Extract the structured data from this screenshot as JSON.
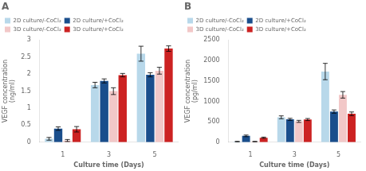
{
  "chart_data": [
    {
      "type": "bar",
      "title": "A",
      "x_label": "Culture time (Days)",
      "y_label": "VEGF concentration\n(ng/ml)",
      "categories": [
        "1",
        "3",
        "5"
      ],
      "series": [
        {
          "name": "2D culture/-CoCl₂",
          "color": "#b8d8ea",
          "values": [
            0.1,
            1.68,
            2.6
          ],
          "errors": [
            0.04,
            0.08,
            0.22
          ]
        },
        {
          "name": "2D culture/+CoCl₂",
          "color": "#1a4e8c",
          "values": [
            0.4,
            1.8,
            1.98
          ],
          "errors": [
            0.05,
            0.06,
            0.06
          ]
        },
        {
          "name": "3D culture/-CoCl₂",
          "color": "#f2c8c8",
          "values": [
            0.05,
            1.5,
            2.1
          ],
          "errors": [
            0.03,
            0.1,
            0.1
          ]
        },
        {
          "name": "3D culture/+CoCl₂",
          "color": "#cc2222",
          "values": [
            0.38,
            1.97,
            2.75
          ],
          "errors": [
            0.08,
            0.05,
            0.08
          ]
        }
      ],
      "ylim": [
        0,
        3
      ],
      "yticks": [
        0,
        0.5,
        1,
        1.5,
        2,
        2.5,
        3
      ],
      "grid": false,
      "legend": "upper left"
    },
    {
      "type": "bar",
      "title": "B",
      "x_label": "Culture time (Days)",
      "y_label": "VEGF concentration\n(pg/ml)",
      "categories": [
        "1",
        "3",
        "5"
      ],
      "series": [
        {
          "name": "2D culture/-CoCl₂",
          "color": "#b8d8ea",
          "values": [
            15,
            610,
            1730
          ],
          "errors": [
            5,
            35,
            200
          ]
        },
        {
          "name": "2D culture/+CoCl₂",
          "color": "#1a4e8c",
          "values": [
            155,
            560,
            750
          ],
          "errors": [
            20,
            25,
            40
          ]
        },
        {
          "name": "3D culture/-CoCl₂",
          "color": "#f2c8c8",
          "values": [
            15,
            510,
            1160
          ],
          "errors": [
            5,
            25,
            80
          ]
        },
        {
          "name": "3D culture/+CoCl₂",
          "color": "#cc2222",
          "values": [
            110,
            555,
            695
          ],
          "errors": [
            15,
            25,
            45
          ]
        }
      ],
      "ylim": [
        0,
        2500
      ],
      "yticks": [
        0,
        500,
        1000,
        1500,
        2000,
        2500
      ],
      "grid": false,
      "legend": "upper left"
    }
  ]
}
